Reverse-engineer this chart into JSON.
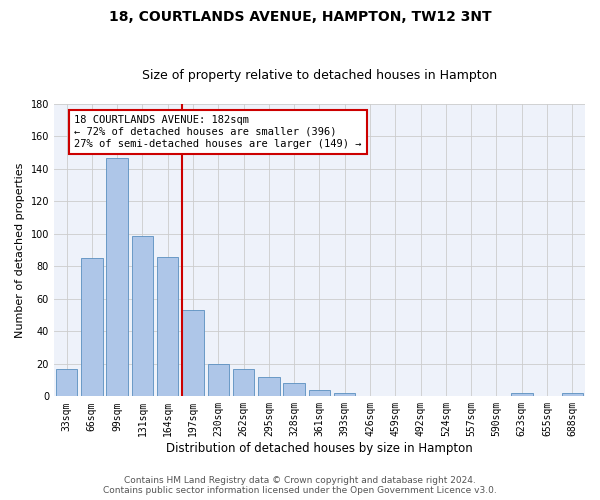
{
  "title": "18, COURTLANDS AVENUE, HAMPTON, TW12 3NT",
  "subtitle": "Size of property relative to detached houses in Hampton",
  "xlabel": "Distribution of detached houses by size in Hampton",
  "ylabel": "Number of detached properties",
  "footer_line1": "Contains HM Land Registry data © Crown copyright and database right 2024.",
  "footer_line2": "Contains public sector information licensed under the Open Government Licence v3.0.",
  "categories": [
    "33sqm",
    "66sqm",
    "99sqm",
    "131sqm",
    "164sqm",
    "197sqm",
    "230sqm",
    "262sqm",
    "295sqm",
    "328sqm",
    "361sqm",
    "393sqm",
    "426sqm",
    "459sqm",
    "492sqm",
    "524sqm",
    "557sqm",
    "590sqm",
    "623sqm",
    "655sqm",
    "688sqm"
  ],
  "values": [
    17,
    85,
    147,
    99,
    86,
    53,
    20,
    17,
    12,
    8,
    4,
    2,
    0,
    0,
    0,
    0,
    0,
    0,
    2,
    0,
    2
  ],
  "bar_color": "#aec6e8",
  "bar_edge_color": "#5a8fc0",
  "vline_x": 4.57,
  "vline_color": "#cc0000",
  "annotation_line1": "18 COURTLANDS AVENUE: 182sqm",
  "annotation_line2": "← 72% of detached houses are smaller (396)",
  "annotation_line3": "27% of semi-detached houses are larger (149) →",
  "annotation_box_color": "#cc0000",
  "ylim": [
    0,
    180
  ],
  "yticks": [
    0,
    20,
    40,
    60,
    80,
    100,
    120,
    140,
    160,
    180
  ],
  "bg_color": "#eef2fa",
  "grid_color": "#cccccc",
  "title_fontsize": 10,
  "subtitle_fontsize": 9,
  "xlabel_fontsize": 8.5,
  "ylabel_fontsize": 8,
  "tick_fontsize": 7,
  "annotation_fontsize": 7.5,
  "footer_fontsize": 6.5
}
